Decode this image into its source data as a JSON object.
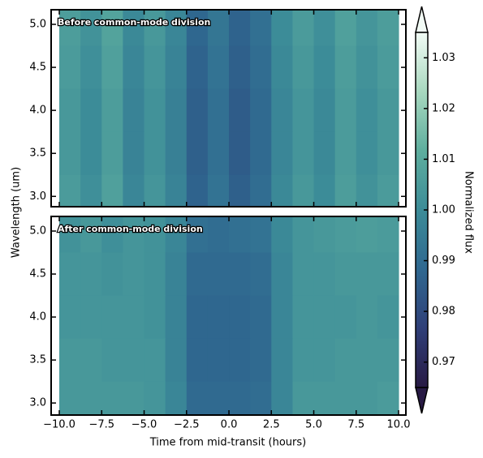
{
  "chart_data": [
    {
      "type": "heatmap",
      "title": "Before common-mode division",
      "x": [
        -9.375,
        -8.125,
        -6.875,
        -5.625,
        -4.375,
        -3.125,
        -1.875,
        -0.625,
        0.625,
        1.875,
        3.125,
        4.375,
        5.625,
        6.875,
        8.125,
        9.375
      ],
      "y": [
        5.0,
        4.5,
        4.0,
        3.5,
        3.0
      ],
      "values": [
        [
          1.006,
          1.002,
          1.008,
          0.999,
          1.004,
          0.998,
          0.988,
          0.993,
          0.987,
          0.991,
          1.0,
          1.005,
          1.001,
          1.007,
          1.003,
          1.006
        ],
        [
          1.005,
          1.001,
          1.007,
          0.998,
          1.003,
          0.997,
          0.987,
          0.992,
          0.986,
          0.99,
          0.999,
          1.004,
          1.0,
          1.006,
          1.002,
          1.005
        ],
        [
          1.004,
          1.0,
          1.006,
          0.997,
          1.002,
          0.996,
          0.986,
          0.991,
          0.985,
          0.989,
          0.998,
          1.003,
          0.999,
          1.005,
          1.001,
          1.004
        ],
        [
          1.004,
          1.0,
          1.006,
          0.997,
          1.002,
          0.996,
          0.986,
          0.991,
          0.985,
          0.989,
          0.998,
          1.003,
          0.999,
          1.005,
          1.001,
          1.004
        ],
        [
          1.005,
          1.001,
          1.007,
          0.998,
          1.003,
          0.997,
          0.987,
          0.992,
          0.986,
          0.99,
          0.999,
          1.004,
          1.0,
          1.006,
          1.002,
          1.005
        ]
      ],
      "ylim": [
        2.88,
        5.17
      ],
      "yticks": [
        {
          "value": 3,
          "label": "3.0"
        },
        3.5,
        {
          "value": 4,
          "label": "4.0"
        },
        4.5,
        {
          "value": 5,
          "label": "5.0"
        }
      ]
    },
    {
      "type": "heatmap",
      "title": "After common-mode division",
      "x": [
        -9.375,
        -8.125,
        -6.875,
        -5.625,
        -4.375,
        -3.125,
        -1.875,
        -0.625,
        0.625,
        1.875,
        3.125,
        4.375,
        5.625,
        6.875,
        8.125,
        9.375
      ],
      "y": [
        5.0,
        4.5,
        4.0,
        3.5,
        3.0
      ],
      "values": [
        [
          1.002,
          1.004,
          1.001,
          1.003,
          1.002,
          0.998,
          0.991,
          0.99,
          0.991,
          0.992,
          0.999,
          1.003,
          1.004,
          1.005,
          1.006,
          1.005
        ],
        [
          1.003,
          1.003,
          1.002,
          1.003,
          1.002,
          0.997,
          0.989,
          0.989,
          0.989,
          0.99,
          0.998,
          1.003,
          1.003,
          1.004,
          1.004,
          1.004
        ],
        [
          1.003,
          1.003,
          1.003,
          1.003,
          1.002,
          0.997,
          0.988,
          0.988,
          0.988,
          0.989,
          0.998,
          1.003,
          1.003,
          1.003,
          1.004,
          1.003
        ],
        [
          1.004,
          1.004,
          1.003,
          1.003,
          1.003,
          0.997,
          0.988,
          0.988,
          0.988,
          0.989,
          0.998,
          1.003,
          1.003,
          1.004,
          1.004,
          1.004
        ],
        [
          1.004,
          1.004,
          1.004,
          1.004,
          1.003,
          0.998,
          0.989,
          0.989,
          0.989,
          0.99,
          0.998,
          1.004,
          1.004,
          1.004,
          1.004,
          1.005
        ]
      ],
      "xlim": [
        -10.48,
        10.43
      ],
      "xticks": [
        {
          "value": -10,
          "label": "−10.0"
        },
        {
          "value": -7.5,
          "label": "−7.5"
        },
        {
          "value": -5,
          "label": "−5.0"
        },
        {
          "value": -2.5,
          "label": "−2.5"
        },
        {
          "value": 0,
          "label": "0.0"
        },
        2.5,
        {
          "value": 5,
          "label": "5.0"
        },
        7.5,
        {
          "value": 10,
          "label": "10.0"
        }
      ],
      "ylim": [
        2.86,
        5.17
      ],
      "yticks": [
        {
          "value": 3,
          "label": "3.0"
        },
        3.5,
        {
          "value": 4,
          "label": "4.0"
        },
        4.5,
        {
          "value": 5,
          "label": "5.0"
        }
      ]
    }
  ],
  "figure": {
    "xlabel": "Time from mid-transit (hours)",
    "ylabel": "Wavelength (um)",
    "colorbar": {
      "label": "Normalized flux",
      "clim": [
        0.965,
        1.035
      ],
      "ticks": [
        0.97,
        0.98,
        0.99,
        {
          "value": 1,
          "label": "1.00"
        },
        1.01,
        1.02,
        1.03
      ],
      "colormap": [
        "#281a44",
        "#2f3f78",
        "#2f6890",
        "#3c8c98",
        "#5eae9e",
        "#a8d8bf",
        "#f2fbf5"
      ]
    }
  }
}
